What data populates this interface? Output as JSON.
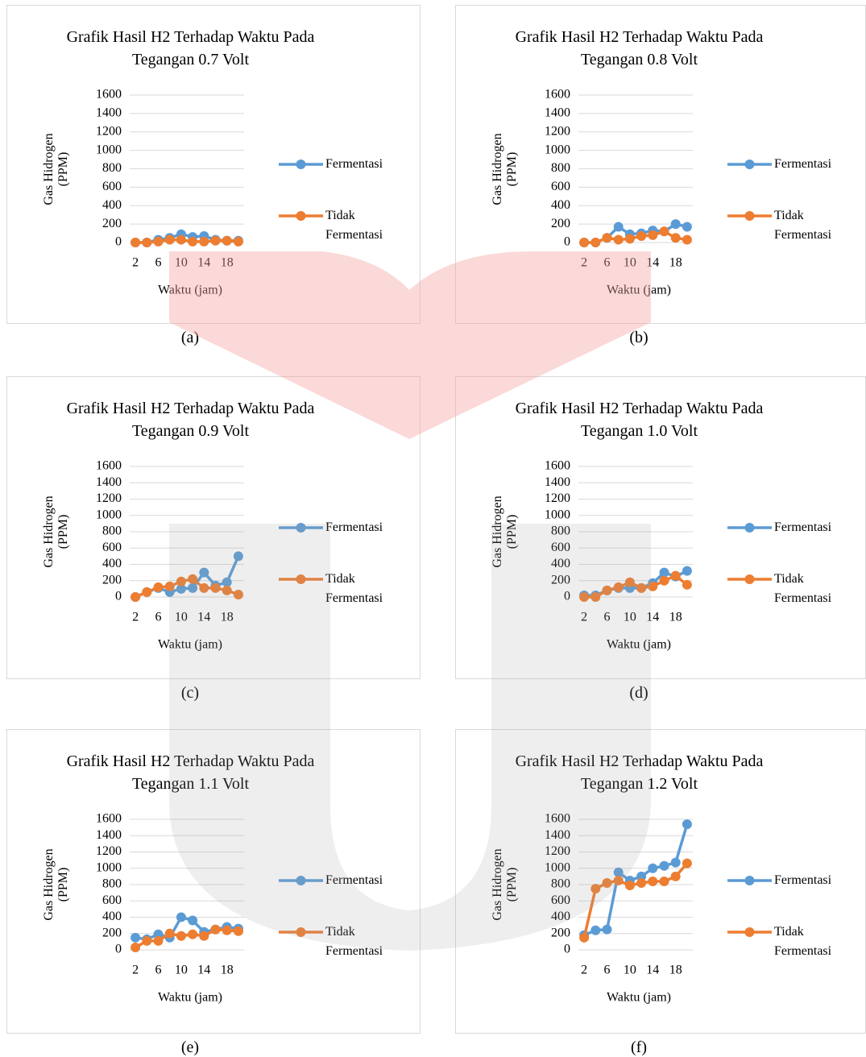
{
  "chart_data": [
    {
      "type": "line",
      "title": "Grafik Hasil H2 Terhadap Waktu Pada Tegangan 0.7 Volt",
      "caption": "(a)",
      "x_label": "Waktu (jam)",
      "y_label": "Gas Hidrogen (PPM)",
      "categories": [
        "2",
        null,
        "6",
        null,
        "10",
        null,
        "14",
        null,
        "18",
        null
      ],
      "series": [
        {
          "name": "Fermentasi",
          "color": "#5b9bd5",
          "values": [
            0,
            0,
            30,
            50,
            90,
            60,
            70,
            30,
            20,
            20
          ]
        },
        {
          "name": "Tidak Fermentasi",
          "color": "#ed7d31",
          "values": [
            0,
            0,
            10,
            30,
            30,
            10,
            10,
            20,
            20,
            10
          ]
        }
      ],
      "ylim": [
        0,
        1600
      ],
      "yticks": [
        0,
        200,
        400,
        600,
        800,
        1000,
        1200,
        1400,
        1600
      ],
      "grid": true,
      "legend": "right"
    },
    {
      "type": "line",
      "title": "Grafik Hasil H2 Terhadap Waktu Pada Tegangan 0.8 Volt",
      "caption": "(b)",
      "x_label": "Waktu (jam)",
      "y_label": "Gas Hidrogen (PPM)",
      "categories": [
        "2",
        null,
        "6",
        null,
        "10",
        null,
        "14",
        null,
        "18",
        null
      ],
      "series": [
        {
          "name": "Fermentasi",
          "color": "#5b9bd5",
          "values": [
            0,
            0,
            50,
            170,
            90,
            100,
            130,
            120,
            200,
            170
          ]
        },
        {
          "name": "Tidak Fermentasi",
          "color": "#ed7d31",
          "values": [
            0,
            0,
            50,
            30,
            40,
            70,
            80,
            120,
            50,
            30
          ]
        }
      ],
      "ylim": [
        0,
        1600
      ],
      "yticks": [
        0,
        200,
        400,
        600,
        800,
        1000,
        1200,
        1400,
        1600
      ],
      "grid": true,
      "legend": "right"
    },
    {
      "type": "line",
      "title": "Grafik Hasil H2 Terhadap Waktu Pada Tegangan 0.9 Volt",
      "caption": "(c)",
      "x_label": "Waktu (jam)",
      "y_label": "Gas Hidrogen (PPM)",
      "categories": [
        "2",
        null,
        "6",
        null,
        "10",
        null,
        "14",
        null,
        "18",
        null
      ],
      "series": [
        {
          "name": "Fermentasi",
          "color": "#5b9bd5",
          "values": [
            0,
            60,
            110,
            60,
            100,
            110,
            300,
            140,
            180,
            500
          ]
        },
        {
          "name": "Tidak Fermentasi",
          "color": "#ed7d31",
          "values": [
            0,
            60,
            120,
            130,
            190,
            220,
            110,
            110,
            80,
            30
          ]
        }
      ],
      "ylim": [
        0,
        1600
      ],
      "yticks": [
        0,
        200,
        400,
        600,
        800,
        1000,
        1200,
        1400,
        1600
      ],
      "grid": true,
      "legend": "right"
    },
    {
      "type": "line",
      "title": "Grafik Hasil H2 Terhadap Waktu Pada Tegangan 1.0 Volt",
      "caption": "(d)",
      "x_label": "Waktu (jam)",
      "y_label": "Gas Hidrogen (PPM)",
      "categories": [
        "2",
        null,
        "6",
        null,
        "10",
        null,
        "14",
        null,
        "18",
        null
      ],
      "series": [
        {
          "name": "Fermentasi",
          "color": "#5b9bd5",
          "values": [
            20,
            20,
            80,
            110,
            110,
            110,
            170,
            300,
            250,
            320
          ]
        },
        {
          "name": "Tidak Fermentasi",
          "color": "#ed7d31",
          "values": [
            0,
            0,
            80,
            120,
            180,
            110,
            130,
            200,
            260,
            150
          ]
        }
      ],
      "ylim": [
        0,
        1600
      ],
      "yticks": [
        0,
        200,
        400,
        600,
        800,
        1000,
        1200,
        1400,
        1600
      ],
      "grid": true,
      "legend": "right"
    },
    {
      "type": "line",
      "title": "Grafik Hasil H2 Terhadap Waktu Pada Tegangan 1.1 Volt",
      "caption": "(e)",
      "x_label": "Waktu (jam)",
      "y_label": "Gas Hidrogen (PPM)",
      "categories": [
        "2",
        null,
        "6",
        null,
        "10",
        null,
        "14",
        null,
        "18",
        null
      ],
      "series": [
        {
          "name": "Fermentasi",
          "color": "#5b9bd5",
          "values": [
            150,
            130,
            190,
            150,
            400,
            360,
            220,
            250,
            280,
            260
          ]
        },
        {
          "name": "Tidak Fermentasi",
          "color": "#ed7d31",
          "values": [
            30,
            110,
            110,
            200,
            170,
            190,
            170,
            250,
            240,
            230
          ]
        }
      ],
      "ylim": [
        0,
        1600
      ],
      "yticks": [
        0,
        200,
        400,
        600,
        800,
        1000,
        1200,
        1400,
        1600
      ],
      "grid": true,
      "legend": "right"
    },
    {
      "type": "line",
      "title": "Grafik Hasil H2 Terhadap Waktu Pada Tegangan 1.2 Volt",
      "caption": "(f)",
      "x_label": "Waktu (jam)",
      "y_label": "Gas Hidrogen (PPM)",
      "categories": [
        "2",
        null,
        "6",
        null,
        "10",
        null,
        "14",
        null,
        "18",
        null
      ],
      "series": [
        {
          "name": "Fermentasi",
          "color": "#5b9bd5",
          "values": [
            180,
            240,
            250,
            950,
            850,
            900,
            1000,
            1030,
            1070,
            1540
          ]
        },
        {
          "name": "Tidak Fermentasi",
          "color": "#ed7d31",
          "values": [
            150,
            750,
            820,
            850,
            790,
            820,
            840,
            840,
            900,
            1060
          ]
        }
      ],
      "ylim": [
        0,
        1600
      ],
      "yticks": [
        0,
        200,
        400,
        600,
        800,
        1000,
        1200,
        1400,
        1600
      ],
      "grid": true,
      "legend": "right"
    }
  ]
}
